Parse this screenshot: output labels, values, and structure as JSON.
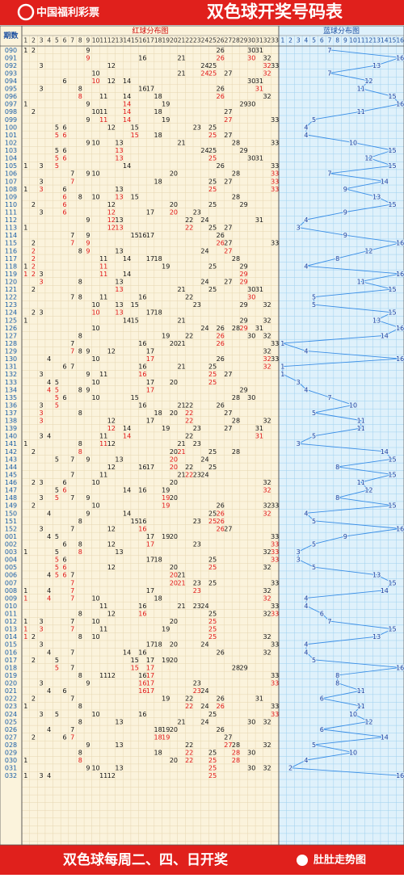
{
  "header": {
    "logo": "中国福利彩票",
    "title": "双色球开奖号码表"
  },
  "columns": {
    "period": "期数",
    "red_title": "红球分布图",
    "blue_title": "蓝球分布图",
    "red": [
      1,
      2,
      3,
      4,
      5,
      6,
      7,
      8,
      9,
      10,
      11,
      12,
      13,
      14,
      15,
      16,
      17,
      18,
      19,
      20,
      21,
      22,
      23,
      24,
      25,
      26,
      27,
      28,
      29,
      30,
      31,
      32,
      33
    ],
    "blue": [
      1,
      2,
      3,
      4,
      5,
      6,
      7,
      8,
      9,
      10,
      11,
      12,
      13,
      14,
      15,
      16
    ]
  },
  "rows": [
    {
      "period": "090",
      "red": [
        1,
        2,
        9,
        26,
        30,
        31
      ],
      "blue": 7
    },
    {
      "period": "091",
      "red": [
        9,
        16,
        21,
        26,
        30,
        32
      ],
      "blue": 16
    },
    {
      "period": "092",
      "red": [
        3,
        12,
        24,
        25,
        32,
        33
      ],
      "blue": 13
    },
    {
      "period": "093",
      "red": [
        10,
        21,
        24,
        25,
        27,
        32
      ],
      "blue": 7
    },
    {
      "period": "094",
      "red": [
        6,
        10,
        12,
        14,
        30,
        31
      ],
      "blue": 12
    },
    {
      "period": "095",
      "red": [
        3,
        8,
        16,
        17,
        26,
        31
      ],
      "blue": 11
    },
    {
      "period": "096",
      "red": [
        8,
        11,
        14,
        18,
        26,
        32
      ],
      "blue": 15
    },
    {
      "period": "097",
      "red": [
        1,
        9,
        14,
        19,
        29,
        30
      ],
      "blue": 16
    },
    {
      "period": "098",
      "red": [
        2,
        10,
        11,
        14,
        18,
        27
      ],
      "blue": 11
    },
    {
      "period": "099",
      "red": [
        9,
        11,
        14,
        19,
        27,
        33
      ],
      "blue": 5
    },
    {
      "period": "100",
      "red": [
        5,
        6,
        12,
        15,
        23,
        25
      ],
      "blue": 4
    },
    {
      "period": "101",
      "red": [
        5,
        6,
        15,
        18,
        25,
        27
      ],
      "blue": 4
    },
    {
      "period": "102",
      "red": [
        9,
        10,
        13,
        21,
        28,
        33
      ],
      "blue": 10
    },
    {
      "period": "103",
      "red": [
        5,
        6,
        13,
        24,
        25,
        29
      ],
      "blue": 15
    },
    {
      "period": "104",
      "red": [
        5,
        6,
        13,
        25,
        30,
        31
      ],
      "blue": 12
    },
    {
      "period": "105",
      "red": [
        1,
        3,
        5,
        14,
        26,
        33
      ],
      "blue": 15
    },
    {
      "period": "106",
      "red": [
        7,
        9,
        10,
        20,
        28,
        33
      ],
      "blue": 7
    },
    {
      "period": "107",
      "red": [
        3,
        7,
        18,
        25,
        27,
        33
      ],
      "blue": 14
    },
    {
      "period": "108",
      "red": [
        1,
        3,
        6,
        13,
        25,
        33
      ],
      "blue": 9
    },
    {
      "period": "109",
      "red": [
        6,
        8,
        10,
        13,
        15,
        28
      ],
      "blue": 13
    },
    {
      "period": "110",
      "red": [
        2,
        6,
        12,
        20,
        25,
        29
      ],
      "blue": 15
    },
    {
      "period": "111",
      "red": [
        3,
        6,
        12,
        17,
        20,
        23
      ],
      "blue": 9
    },
    {
      "period": "112",
      "red": [
        9,
        12,
        13,
        22,
        24,
        31
      ],
      "blue": 4
    },
    {
      "period": "113",
      "red": [
        1,
        12,
        13,
        22,
        25,
        27
      ],
      "blue": 3
    },
    {
      "period": "114",
      "red": [
        7,
        9,
        15,
        16,
        17,
        26
      ],
      "blue": 9
    },
    {
      "period": "115",
      "red": [
        2,
        7,
        9,
        26,
        27,
        33
      ],
      "blue": 16
    },
    {
      "period": "116",
      "red": [
        2,
        8,
        9,
        13,
        24,
        27
      ],
      "blue": 12
    },
    {
      "period": "117",
      "red": [
        2,
        11,
        14,
        17,
        18,
        28
      ],
      "blue": 8
    },
    {
      "period": "118",
      "red": [
        1,
        2,
        11,
        19,
        25,
        29
      ],
      "blue": 4
    },
    {
      "period": "119",
      "red": [
        1,
        2,
        3,
        11,
        14,
        29
      ],
      "blue": 16
    },
    {
      "period": "120",
      "red": [
        3,
        8,
        13,
        24,
        27,
        29
      ],
      "blue": 11
    },
    {
      "period": "121",
      "red": [
        2,
        13,
        21,
        25,
        30,
        31
      ],
      "blue": 15
    },
    {
      "period": "122",
      "red": [
        7,
        8,
        11,
        16,
        22,
        30
      ],
      "blue": 5
    },
    {
      "period": "123",
      "red": [
        10,
        13,
        15,
        23,
        29,
        32
      ],
      "blue": 5
    },
    {
      "period": "124",
      "red": [
        2,
        3,
        10,
        13,
        17,
        18
      ],
      "blue": 15
    },
    {
      "period": "125",
      "red": [
        1,
        14,
        15,
        21,
        29,
        32
      ],
      "blue": 13
    },
    {
      "period": "126",
      "red": [
        10,
        24,
        26,
        28,
        29,
        31
      ],
      "blue": 16
    },
    {
      "period": "127",
      "red": [
        8,
        19,
        22,
        26,
        30,
        32
      ],
      "blue": 14
    },
    {
      "period": "128",
      "red": [
        7,
        16,
        20,
        21,
        26,
        33
      ],
      "blue": 1
    },
    {
      "period": "129",
      "red": [
        7,
        8,
        9,
        12,
        17,
        32
      ],
      "blue": 4
    },
    {
      "period": "130",
      "red": [
        4,
        10,
        17,
        26,
        32,
        33
      ],
      "blue": 16
    },
    {
      "period": "131",
      "red": [
        6,
        7,
        16,
        21,
        25,
        32
      ],
      "blue": 1
    },
    {
      "period": "132",
      "red": [
        3,
        9,
        11,
        16,
        25,
        27
      ],
      "blue": 1
    },
    {
      "period": "133",
      "red": [
        4,
        5,
        10,
        17,
        20,
        25
      ],
      "blue": 3
    },
    {
      "period": "134",
      "red": [
        4,
        5,
        8,
        9,
        17,
        29
      ],
      "blue": 4
    },
    {
      "period": "135",
      "red": [
        5,
        6,
        10,
        15,
        28,
        30
      ],
      "blue": 7
    },
    {
      "period": "136",
      "red": [
        3,
        5,
        16,
        21,
        22,
        26
      ],
      "blue": 10
    },
    {
      "period": "137",
      "red": [
        3,
        8,
        18,
        20,
        22,
        27
      ],
      "blue": 5
    },
    {
      "period": "138",
      "red": [
        3,
        12,
        17,
        22,
        28,
        32
      ],
      "blue": 11
    },
    {
      "period": "139",
      "red": [
        12,
        14,
        19,
        23,
        27,
        31
      ],
      "blue": 11
    },
    {
      "period": "140",
      "red": [
        3,
        4,
        11,
        14,
        22,
        31
      ],
      "blue": 5
    },
    {
      "period": "141",
      "red": [
        1,
        8,
        11,
        12,
        21,
        23
      ],
      "blue": 3
    },
    {
      "period": "142",
      "red": [
        2,
        8,
        20,
        21,
        25,
        28
      ],
      "blue": 14
    },
    {
      "period": "143",
      "red": [
        5,
        7,
        9,
        13,
        20,
        24
      ],
      "blue": 15
    },
    {
      "period": "144",
      "red": [
        12,
        16,
        17,
        20,
        22,
        25
      ],
      "blue": 8
    },
    {
      "period": "145",
      "red": [
        7,
        11,
        21,
        22,
        23,
        24
      ],
      "blue": 15
    },
    {
      "period": "146",
      "red": [
        2,
        3,
        6,
        10,
        20,
        32
      ],
      "blue": 11
    },
    {
      "period": "147",
      "red": [
        5,
        6,
        14,
        16,
        19,
        32
      ],
      "blue": 12
    },
    {
      "period": "148",
      "red": [
        3,
        5,
        7,
        9,
        19,
        20
      ],
      "blue": 8
    },
    {
      "period": "149",
      "red": [
        2,
        10,
        19,
        26,
        32,
        33
      ],
      "blue": 15
    },
    {
      "period": "150",
      "red": [
        4,
        9,
        14,
        25,
        26,
        32
      ],
      "blue": 4
    },
    {
      "period": "151",
      "red": [
        8,
        15,
        16,
        23,
        25,
        26
      ],
      "blue": 5
    },
    {
      "period": "152",
      "red": [
        3,
        7,
        12,
        16,
        26,
        27
      ],
      "blue": 16
    },
    {
      "period": "001",
      "red": [
        4,
        5,
        17,
        19,
        20,
        33
      ],
      "blue": 9
    },
    {
      "period": "002",
      "red": [
        6,
        8,
        12,
        17,
        23,
        33
      ],
      "blue": 5
    },
    {
      "period": "003",
      "red": [
        1,
        5,
        8,
        13,
        32,
        33
      ],
      "blue": 3
    },
    {
      "period": "004",
      "red": [
        5,
        6,
        17,
        18,
        25,
        33
      ],
      "blue": 3
    },
    {
      "period": "005",
      "red": [
        5,
        6,
        12,
        20,
        25,
        32
      ],
      "blue": 5
    },
    {
      "period": "006",
      "red": [
        4,
        5,
        6,
        7,
        20,
        21
      ],
      "blue": 13
    },
    {
      "period": "007",
      "red": [
        7,
        20,
        21,
        23,
        25,
        33
      ],
      "blue": 15
    },
    {
      "period": "008",
      "red": [
        1,
        4,
        7,
        17,
        23,
        32
      ],
      "blue": 14
    },
    {
      "period": "009",
      "red": [
        1,
        4,
        7,
        10,
        18,
        32
      ],
      "blue": 4
    },
    {
      "period": "010",
      "red": [
        11,
        16,
        21,
        23,
        24,
        33
      ],
      "blue": 4
    },
    {
      "period": "011",
      "red": [
        8,
        12,
        16,
        25,
        32,
        33
      ],
      "blue": 6
    },
    {
      "period": "012",
      "red": [
        1,
        3,
        7,
        10,
        20,
        25
      ],
      "blue": 7
    },
    {
      "period": "013",
      "red": [
        1,
        3,
        7,
        11,
        19,
        25
      ],
      "blue": 15
    },
    {
      "period": "014",
      "red": [
        1,
        2,
        8,
        10,
        25,
        32
      ],
      "blue": 13
    },
    {
      "period": "015",
      "red": [
        3,
        17,
        18,
        20,
        24,
        33
      ],
      "blue": 4
    },
    {
      "period": "016",
      "red": [
        4,
        7,
        14,
        16,
        26,
        32
      ],
      "blue": 4
    },
    {
      "period": "017",
      "red": [
        2,
        5,
        15,
        17,
        19,
        20
      ],
      "blue": 5
    },
    {
      "period": "018",
      "red": [
        5,
        7,
        15,
        17,
        28,
        29
      ],
      "blue": 16
    },
    {
      "period": "019",
      "red": [
        8,
        11,
        12,
        16,
        17,
        33
      ],
      "blue": 8
    },
    {
      "period": "020",
      "red": [
        3,
        9,
        16,
        17,
        23,
        33
      ],
      "blue": 8
    },
    {
      "period": "021",
      "red": [
        4,
        6,
        16,
        17,
        23,
        24
      ],
      "blue": 11
    },
    {
      "period": "022",
      "red": [
        2,
        7,
        19,
        22,
        26,
        31
      ],
      "blue": 6
    },
    {
      "period": "023",
      "red": [
        1,
        8,
        22,
        24,
        26,
        33
      ],
      "blue": 11
    },
    {
      "period": "024",
      "red": [
        3,
        5,
        10,
        16,
        25,
        33
      ],
      "blue": 10
    },
    {
      "period": "025",
      "red": [
        8,
        13,
        21,
        24,
        30,
        32
      ],
      "blue": 12
    },
    {
      "period": "026",
      "red": [
        4,
        7,
        18,
        19,
        20,
        26
      ],
      "blue": 6
    },
    {
      "period": "027",
      "red": [
        2,
        6,
        7,
        18,
        19,
        27
      ],
      "blue": 14
    },
    {
      "period": "028",
      "red": [
        9,
        13,
        22,
        27,
        28,
        32
      ],
      "blue": 5
    },
    {
      "period": "029",
      "red": [
        8,
        18,
        22,
        25,
        28,
        30
      ],
      "blue": 10
    },
    {
      "period": "030",
      "red": [
        1,
        8,
        20,
        22,
        25,
        28
      ],
      "blue": 4
    },
    {
      "period": "031",
      "red": [
        9,
        10,
        13,
        25,
        30,
        32
      ],
      "blue": 2
    },
    {
      "period": "032",
      "red": [
        1,
        3,
        4,
        11,
        12,
        25
      ],
      "blue": 16
    }
  ],
  "footer": {
    "schedule": "双色球每周二、四、日开奖",
    "brand": "肚肚走势图"
  }
}
